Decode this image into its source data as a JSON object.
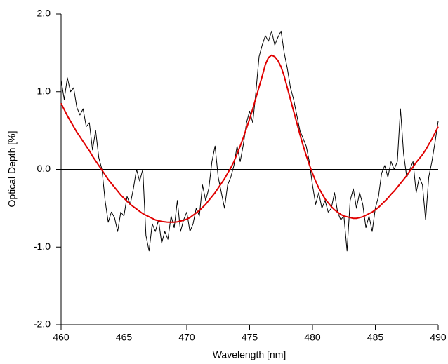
{
  "chart_data": {
    "type": "line",
    "xlabel": "Wavelength [nm]",
    "ylabel": "Optical Depth [%]",
    "x": [
      460,
      460.25,
      460.5,
      460.75,
      461,
      461.25,
      461.5,
      461.75,
      462,
      462.25,
      462.5,
      462.75,
      463,
      463.25,
      463.5,
      463.75,
      464,
      464.25,
      464.5,
      464.75,
      465,
      465.25,
      465.5,
      465.75,
      466,
      466.25,
      466.5,
      466.75,
      467,
      467.25,
      467.5,
      467.75,
      468,
      468.25,
      468.5,
      468.75,
      469,
      469.25,
      469.5,
      469.75,
      470,
      470.25,
      470.5,
      470.75,
      471,
      471.25,
      471.5,
      471.75,
      472,
      472.25,
      472.5,
      472.75,
      473,
      473.25,
      473.5,
      473.75,
      474,
      474.25,
      474.5,
      474.75,
      475,
      475.25,
      475.5,
      475.75,
      476,
      476.25,
      476.5,
      476.75,
      477,
      477.25,
      477.5,
      477.75,
      478,
      478.25,
      478.5,
      478.75,
      479,
      479.25,
      479.5,
      479.75,
      480,
      480.25,
      480.5,
      480.75,
      481,
      481.25,
      481.5,
      481.75,
      482,
      482.25,
      482.5,
      482.75,
      483,
      483.25,
      483.5,
      483.75,
      484,
      484.25,
      484.5,
      484.75,
      485,
      485.25,
      485.5,
      485.75,
      486,
      486.25,
      486.5,
      486.75,
      487,
      487.25,
      487.5,
      487.75,
      488,
      488.25,
      488.5,
      488.75,
      489,
      489.25,
      489.5,
      489.75,
      490
    ],
    "series": [
      {
        "color": "#000000",
        "values": [
          1.15,
          0.9,
          1.18,
          1.0,
          1.05,
          0.8,
          0.7,
          0.78,
          0.55,
          0.6,
          0.25,
          0.5,
          0.15,
          0.0,
          -0.4,
          -0.68,
          -0.55,
          -0.62,
          -0.8,
          -0.55,
          -0.6,
          -0.35,
          -0.45,
          -0.25,
          0.0,
          -0.15,
          0.0,
          -0.85,
          -1.05,
          -0.7,
          -0.8,
          -0.65,
          -0.95,
          -0.8,
          -0.9,
          -0.6,
          -0.75,
          -0.4,
          -0.8,
          -0.65,
          -0.55,
          -0.8,
          -0.7,
          -0.5,
          -0.6,
          -0.2,
          -0.4,
          -0.25,
          0.1,
          0.3,
          -0.1,
          -0.3,
          -0.5,
          -0.2,
          -0.1,
          0.05,
          0.3,
          0.1,
          0.32,
          0.6,
          0.75,
          0.6,
          1.0,
          1.45,
          1.6,
          1.72,
          1.65,
          1.78,
          1.6,
          1.7,
          1.78,
          1.5,
          1.3,
          1.05,
          0.9,
          0.7,
          0.5,
          0.4,
          0.3,
          0.1,
          -0.2,
          -0.45,
          -0.3,
          -0.5,
          -0.4,
          -0.55,
          -0.5,
          -0.3,
          -0.55,
          -0.65,
          -0.6,
          -1.05,
          -0.4,
          -0.25,
          -0.5,
          -0.3,
          -0.45,
          -0.75,
          -0.6,
          -0.8,
          -0.5,
          -0.35,
          -0.05,
          0.05,
          -0.1,
          0.1,
          0.0,
          0.1,
          0.78,
          0.2,
          -0.1,
          0.0,
          0.1,
          -0.3,
          -0.1,
          -0.2,
          -0.65,
          -0.1,
          0.1,
          0.35,
          0.62
        ]
      },
      {
        "color": "#e00000",
        "values": [
          0.85,
          0.77,
          0.69,
          0.62,
          0.55,
          0.48,
          0.42,
          0.36,
          0.3,
          0.24,
          0.17,
          0.11,
          0.05,
          -0.01,
          -0.07,
          -0.13,
          -0.18,
          -0.23,
          -0.28,
          -0.33,
          -0.37,
          -0.41,
          -0.45,
          -0.48,
          -0.51,
          -0.54,
          -0.57,
          -0.59,
          -0.61,
          -0.63,
          -0.65,
          -0.66,
          -0.67,
          -0.675,
          -0.68,
          -0.68,
          -0.68,
          -0.675,
          -0.665,
          -0.655,
          -0.64,
          -0.62,
          -0.59,
          -0.56,
          -0.53,
          -0.49,
          -0.45,
          -0.4,
          -0.35,
          -0.3,
          -0.24,
          -0.18,
          -0.12,
          -0.05,
          0.02,
          0.1,
          0.2,
          0.3,
          0.41,
          0.53,
          0.65,
          0.78,
          0.92,
          1.06,
          1.2,
          1.35,
          1.44,
          1.47,
          1.45,
          1.4,
          1.32,
          1.2,
          1.05,
          0.9,
          0.75,
          0.6,
          0.45,
          0.31,
          0.18,
          0.06,
          -0.05,
          -0.15,
          -0.24,
          -0.31,
          -0.38,
          -0.43,
          -0.48,
          -0.52,
          -0.55,
          -0.58,
          -0.6,
          -0.61,
          -0.62,
          -0.63,
          -0.63,
          -0.62,
          -0.61,
          -0.59,
          -0.57,
          -0.55,
          -0.52,
          -0.49,
          -0.45,
          -0.41,
          -0.37,
          -0.32,
          -0.28,
          -0.23,
          -0.18,
          -0.13,
          -0.08,
          -0.02,
          0.03,
          0.09,
          0.14,
          0.19,
          0.25,
          0.32,
          0.39,
          0.47,
          0.55
        ]
      }
    ],
    "xlim": [
      460,
      490
    ],
    "xticks": [
      460,
      465,
      470,
      475,
      480,
      485,
      490
    ],
    "ylim": [
      -2,
      2
    ],
    "yticks": [
      {
        "value": -2,
        "label": "-2.0"
      },
      {
        "value": -1,
        "label": "-1.0"
      },
      {
        "value": 0,
        "label": "0.0"
      },
      {
        "value": 1,
        "label": "1.0"
      },
      {
        "value": 2,
        "label": "2.0"
      }
    ],
    "zero_line": true
  }
}
